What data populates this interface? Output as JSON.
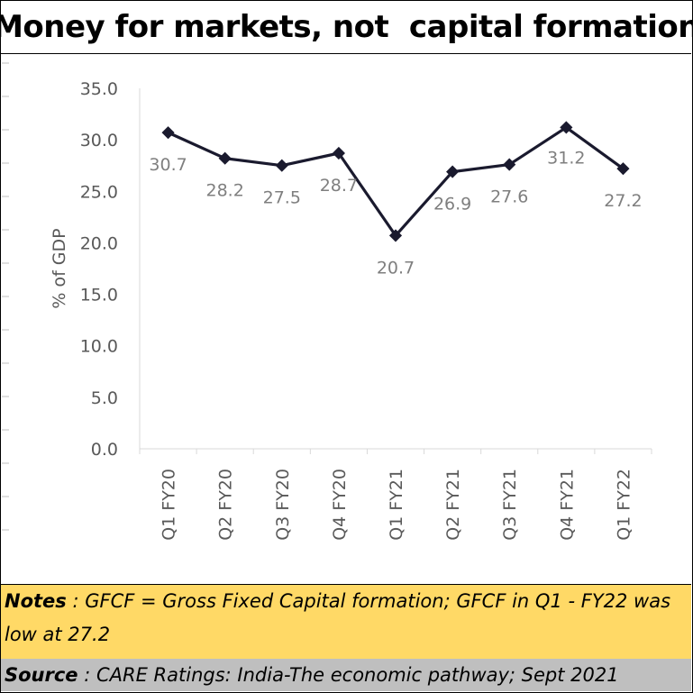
{
  "title": "Money for markets, not  capital formation",
  "notes": {
    "label": "Notes",
    "text": " : GFCF = Gross Fixed Capital formation; GFCF in Q1 - FY22 was low at 27.2"
  },
  "source": {
    "label": "Source",
    "text": " : CARE Ratings: India-The economic pathway; Sept 2021"
  },
  "chart_data": {
    "type": "line",
    "categories": [
      "Q1 FY20",
      "Q2 FY20",
      "Q3 FY20",
      "Q4 FY20",
      "Q1 FY21",
      "Q2 FY21",
      "Q3 FY21",
      "Q4 FY21",
      "Q1 FY22"
    ],
    "values": [
      30.7,
      28.2,
      27.5,
      28.7,
      20.7,
      26.9,
      27.6,
      31.2,
      27.2
    ],
    "data_labels": [
      "30.7",
      "28.2",
      "27.5",
      "28.7",
      "20.7",
      "26.9",
      "27.6",
      "31.2",
      "27.2"
    ],
    "ylabel": "% of GDP",
    "ylim": [
      0,
      35
    ],
    "yticks": [
      "0.0",
      "5.0",
      "10.0",
      "15.0",
      "20.0",
      "25.0",
      "30.0",
      "35.0"
    ],
    "grid": false,
    "line_color": "#1a1a2e",
    "label_color": "#7f7f7f"
  }
}
